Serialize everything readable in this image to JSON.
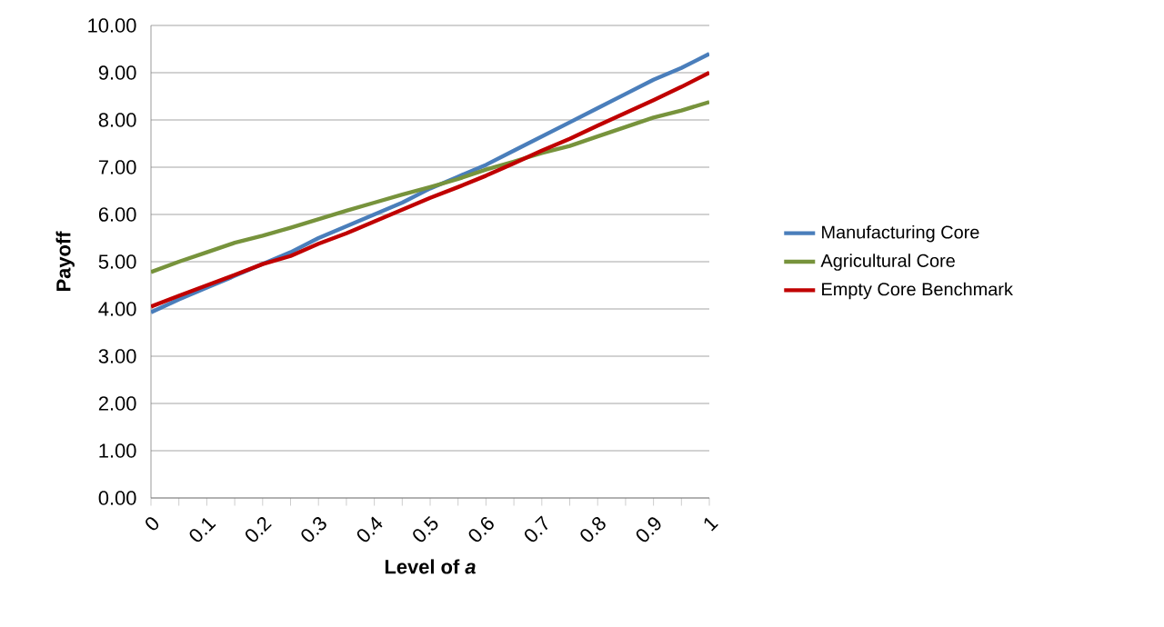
{
  "chart_data": {
    "type": "line",
    "xlabel": "Level of *a*",
    "ylabel": "Payoff",
    "categories": [
      "0",
      null,
      "0.1",
      null,
      "0.2",
      null,
      "0.3",
      null,
      "0.4",
      null,
      "0.5",
      null,
      "0.6",
      null,
      "0.7",
      null,
      "0.8",
      null,
      "0.9",
      null,
      "1"
    ],
    "series": [
      {
        "name": "Manufacturing Core",
        "color": "#4a7ebb",
        "values": [
          3.93,
          4.2,
          4.45,
          4.7,
          4.95,
          5.2,
          5.5,
          5.75,
          6.0,
          6.25,
          6.55,
          6.8,
          7.05,
          7.35,
          7.65,
          7.95,
          8.25,
          8.55,
          8.85,
          9.1,
          9.4
        ]
      },
      {
        "name": "Agricultural Core",
        "color": "#77933c",
        "values": [
          4.78,
          5.0,
          5.2,
          5.4,
          5.55,
          5.72,
          5.9,
          6.08,
          6.25,
          6.42,
          6.58,
          6.75,
          6.95,
          7.12,
          7.3,
          7.45,
          7.65,
          7.85,
          8.05,
          8.2,
          8.38
        ]
      },
      {
        "name": "Empty Core Benchmark",
        "color": "#c00000",
        "values": [
          4.05,
          4.28,
          4.5,
          4.72,
          4.95,
          5.12,
          5.38,
          5.6,
          5.85,
          6.1,
          6.35,
          6.58,
          6.82,
          7.08,
          7.35,
          7.6,
          7.88,
          8.15,
          8.42,
          8.7,
          9.0
        ]
      }
    ],
    "ylim": [
      0,
      10
    ],
    "yticks": [
      {
        "value": 0,
        "label": "0.00"
      },
      {
        "value": 1,
        "label": "1.00"
      },
      {
        "value": 2,
        "label": "2.00"
      },
      {
        "value": 3,
        "label": "3.00"
      },
      {
        "value": 4,
        "label": "4.00"
      },
      {
        "value": 5,
        "label": "5.00"
      },
      {
        "value": 6,
        "label": "6.00"
      },
      {
        "value": 7,
        "label": "7.00"
      },
      {
        "value": 8,
        "label": "8.00"
      },
      {
        "value": 9,
        "label": "9.00"
      },
      {
        "value": 10,
        "label": "10.00"
      }
    ],
    "grid": "y",
    "legend": "right",
    "marker": "none",
    "line_style": "solid"
  }
}
